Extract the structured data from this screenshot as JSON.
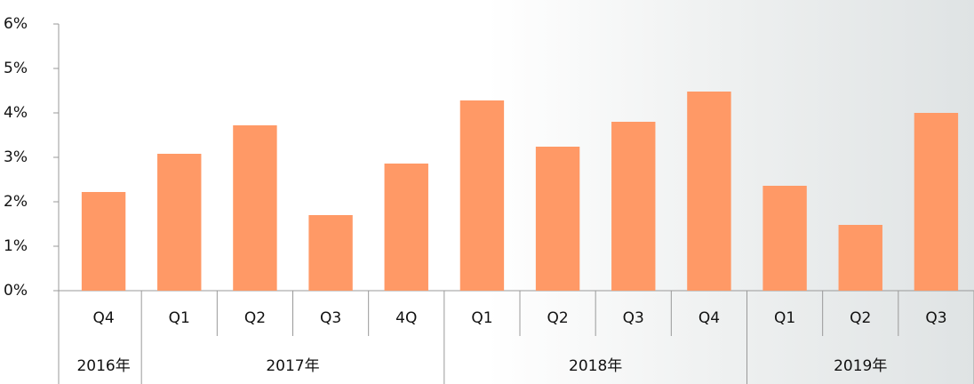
{
  "chart_data": {
    "type": "bar",
    "categories": [
      "Q4",
      "Q1",
      "Q2",
      "Q3",
      "4Q",
      "Q1",
      "Q2",
      "Q3",
      "Q4",
      "Q1",
      "Q2",
      "Q3"
    ],
    "x_groups": [
      "2016年",
      "2017年",
      null,
      null,
      null,
      "2018年",
      null,
      null,
      null,
      "2019年",
      null,
      null
    ],
    "values": [
      2.22,
      3.08,
      3.72,
      1.7,
      2.86,
      4.28,
      3.24,
      3.8,
      4.48,
      2.36,
      1.48,
      4.0
    ],
    "color": "#ff9966",
    "ylim": [
      0,
      6
    ],
    "yticks": [
      {
        "value": 0,
        "label": "0%"
      },
      {
        "value": 1,
        "label": "1%"
      },
      {
        "value": 2,
        "label": "2%"
      },
      {
        "value": 3,
        "label": "3%"
      },
      {
        "value": 4,
        "label": "4%"
      },
      {
        "value": 5,
        "label": "5%"
      },
      {
        "value": 6,
        "label": "6%"
      }
    ]
  }
}
